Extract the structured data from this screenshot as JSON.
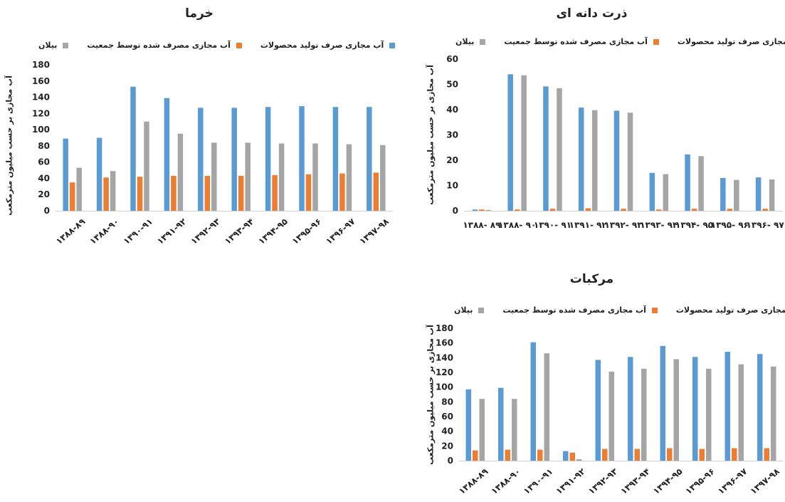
{
  "colors": {
    "production": "#5B9BD5",
    "consumption": "#ED7D31",
    "balance": "#A5A5A5"
  },
  "chart_data": [
    {
      "type": "bar",
      "title": "خرما",
      "ylabel": "آب مجازی بر حسب میلیون مترمکعب",
      "xlabel": "",
      "ylim": [
        0,
        180
      ],
      "yticks": [
        0,
        20,
        40,
        60,
        80,
        100,
        120,
        140,
        160,
        180
      ],
      "categories": [
        "۱۳۸۸-۸۹",
        "۱۳۸۸-۹۰",
        "۱۳۹۰-۹۱",
        "۱۳۹۱-۹۲",
        "۱۳۹۲-۹۳",
        "۱۳۹۳-۹۴",
        "۱۳۹۴-۹۵",
        "۱۳۹۵-۹۶",
        "۱۳۹۶-۹۷",
        "۱۳۹۷-۹۸"
      ],
      "series": [
        {
          "name": "آب مجازی صرف تولید محصولات",
          "values": [
            89,
            90,
            153,
            139,
            127,
            127,
            128,
            129,
            128,
            128
          ]
        },
        {
          "name": "آب مجازی مصرف شده توسط جمعیت",
          "values": [
            35,
            41,
            42,
            43,
            43,
            43,
            44,
            45,
            46,
            47
          ]
        },
        {
          "name": "بیلان",
          "values": [
            53,
            49,
            110,
            95,
            84,
            84,
            83,
            83,
            82,
            81
          ]
        }
      ],
      "grid": false,
      "legend": "top"
    },
    {
      "type": "bar",
      "title": "ذرت دانه ای",
      "ylabel": "آب مجازی بر حسب میلیون مترمکعب",
      "xlabel": "",
      "ylim": [
        0,
        60
      ],
      "yticks": [
        0,
        10,
        20,
        30,
        40,
        50,
        60
      ],
      "categories": [
        "۱۳۸۸- ۸۹",
        "۱۳۸۸- ۹۰",
        "۱۳۹۰- ۹۱",
        "۱۳۹۱- ۹۲",
        "۱۳۹۲- ۹۳",
        "۱۳۹۳- ۹۴",
        "۱۳۹۴- ۹۵",
        "۱۳۹۵- ۹۶",
        "۱۳۹۶- ۹۷"
      ],
      "series": [
        {
          "name": "آب مجازی صرف تولید محصولات",
          "values": [
            0.5,
            54,
            49.2,
            40.8,
            39.6,
            15,
            22.3,
            13,
            13.2
          ]
        },
        {
          "name": "آب مجازی مصرف شده توسط جمعیت",
          "values": [
            0.5,
            0.5,
            0.8,
            1,
            0.8,
            0.5,
            0.8,
            0.8,
            0.8
          ]
        },
        {
          "name": "بیلان",
          "values": [
            0.3,
            53.6,
            48.5,
            39.8,
            38.8,
            14.5,
            21.6,
            12.2,
            12.4
          ]
        }
      ],
      "grid": false,
      "legend": "top"
    },
    {
      "type": "bar",
      "title": "مرکبات",
      "ylabel": "آب مجازی بر حسب میلیون مترمکعب",
      "xlabel": "",
      "ylim": [
        0,
        180
      ],
      "yticks": [
        0,
        20,
        40,
        60,
        80,
        100,
        120,
        140,
        160,
        180
      ],
      "categories": [
        "۱۳۸۸-۸۹",
        "۱۳۸۸-۹۰",
        "۱۳۹۰-۹۱",
        "۱۳۹۱-۹۲",
        "۱۳۹۲-۹۳",
        "۱۳۹۳-۹۴",
        "۱۳۹۴-۹۵",
        "۱۳۹۵-۹۶",
        "۱۳۹۶-۹۷",
        "۱۳۹۷-۹۸"
      ],
      "series": [
        {
          "name": "آب مجازی صرف تولید محصولات",
          "values": [
            97,
            99,
            161,
            13,
            137,
            141,
            156,
            141,
            148,
            145
          ]
        },
        {
          "name": "آب مجازی مصرف شده توسط جمعیت",
          "values": [
            14,
            15,
            15,
            11,
            16,
            16,
            17,
            16,
            17,
            17
          ]
        },
        {
          "name": "بیلان",
          "values": [
            84,
            84,
            146,
            2,
            121,
            125,
            138,
            125,
            131,
            128
          ]
        }
      ],
      "grid": false,
      "legend": "top"
    }
  ]
}
